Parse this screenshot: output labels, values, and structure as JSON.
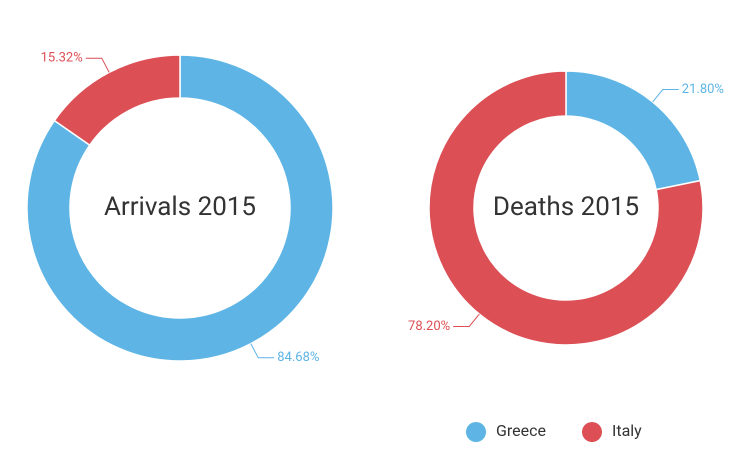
{
  "chart_data": [
    {
      "type": "donut",
      "title": "Arrivals 2015",
      "categories": [
        "Greece",
        "Italy"
      ],
      "values": [
        84.68,
        15.32
      ],
      "value_labels": [
        "84.68%",
        "15.32%"
      ],
      "colors": [
        "#5db4e5",
        "#db4f55"
      ]
    },
    {
      "type": "donut",
      "title": "Deaths 2015",
      "categories": [
        "Greece",
        "Italy"
      ],
      "values": [
        21.8,
        78.2
      ],
      "value_labels": [
        "21.80%",
        "78.20%"
      ],
      "colors": [
        "#5db4e5",
        "#db4f55"
      ]
    }
  ]
}
